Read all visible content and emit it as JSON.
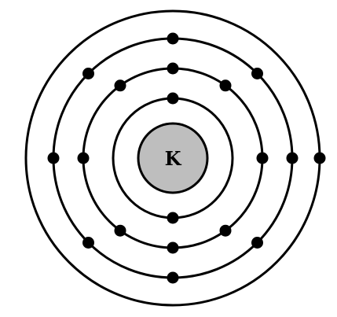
{
  "nucleus": {
    "symbol": "K",
    "fill_color": "#bebebe"
  },
  "shells": [
    {
      "name": "shell-1",
      "electrons": 2
    },
    {
      "name": "shell-2",
      "electrons": 8
    },
    {
      "name": "shell-3",
      "electrons": 8
    },
    {
      "name": "shell-4",
      "electrons": 1
    }
  ],
  "colors": {
    "line": "#000000",
    "electron": "#000000",
    "background": "#ffffff"
  }
}
